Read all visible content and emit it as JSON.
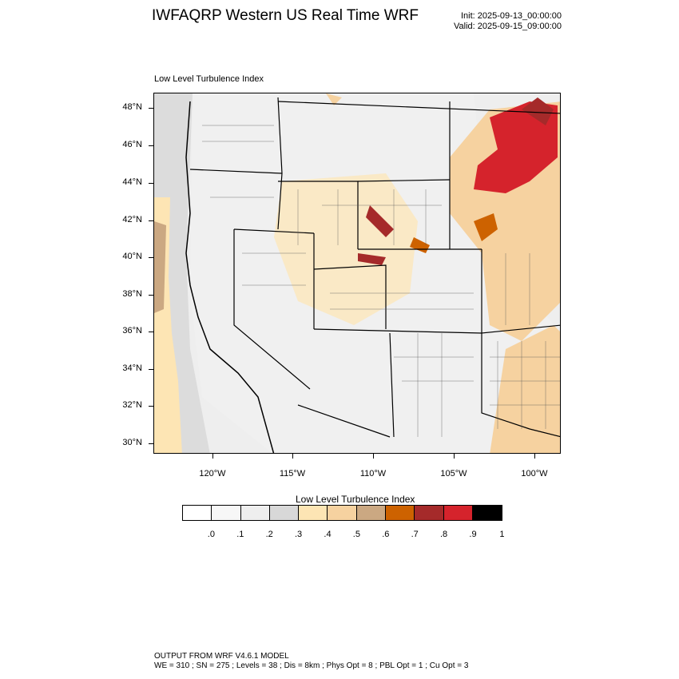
{
  "title": "IWFAQRP Western US Real Time WRF",
  "init": "Init: 2025-09-13_00:00:00",
  "valid": "Valid: 2025-09-15_09:00:00",
  "subtitle": "Low Level Turbulence Index",
  "lat_labels": [
    "48°N",
    "46°N",
    "44°N",
    "42°N",
    "40°N",
    "38°N",
    "36°N",
    "34°N",
    "32°N",
    "30°N"
  ],
  "lon_labels": [
    "120°W",
    "115°W",
    "110°W",
    "105°W",
    "100°W"
  ],
  "colorbar": {
    "title": "Low Level Turbulence Index",
    "labels": [
      ".0",
      ".1",
      ".2",
      ".3",
      ".4",
      ".5",
      ".6",
      ".7",
      ".8",
      ".9",
      "1"
    ],
    "colors": [
      "#ffffff",
      "#f7f7f7",
      "#eeeeee",
      "#d8d8d8",
      "#fde5b4",
      "#f6d2a0",
      "#cba882",
      "#cd6200",
      "#a52a2a",
      "#d5232c",
      "#000000"
    ]
  },
  "footer": {
    "line1": "OUTPUT FROM WRF V4.6.1 MODEL",
    "line2": "WE = 310 ; SN = 275 ; Levels = 38 ; Dis = 8km ; Phys Opt = 8 ; PBL Opt = 1 ; Cu Opt = 3"
  }
}
